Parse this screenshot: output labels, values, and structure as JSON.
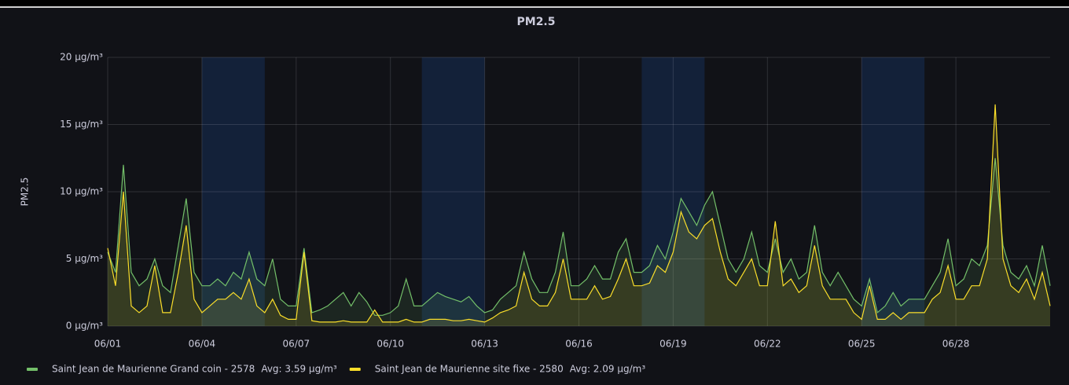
{
  "chart_data": {
    "type": "line",
    "title": "PM2.5",
    "y_label": "PM2.5",
    "xlim": [
      1,
      31
    ],
    "ylim": [
      0,
      20
    ],
    "xticks": [
      {
        "value": 1,
        "label": "06/01"
      },
      {
        "value": 4,
        "label": "06/04"
      },
      {
        "value": 7,
        "label": "06/07"
      },
      {
        "value": 10,
        "label": "06/10"
      },
      {
        "value": 13,
        "label": "06/13"
      },
      {
        "value": 16,
        "label": "06/16"
      },
      {
        "value": 19,
        "label": "06/19"
      },
      {
        "value": 22,
        "label": "06/22"
      },
      {
        "value": 25,
        "label": "06/25"
      },
      {
        "value": 28,
        "label": "06/28"
      }
    ],
    "yticks": [
      {
        "value": 0,
        "label": "0 µg/m³"
      },
      {
        "value": 5,
        "label": "5 µg/m³"
      },
      {
        "value": 10,
        "label": "10 µg/m³"
      },
      {
        "value": 15,
        "label": "15 µg/m³"
      },
      {
        "value": 20,
        "label": "20 µg/m³"
      }
    ],
    "grid": true,
    "shaded_regions": [
      [
        4,
        6
      ],
      [
        11,
        13
      ],
      [
        18,
        20
      ],
      [
        25,
        27
      ]
    ],
    "x": [
      1,
      1.25,
      1.5,
      1.75,
      2,
      2.25,
      2.5,
      2.75,
      3,
      3.25,
      3.5,
      3.75,
      4,
      4.25,
      4.5,
      4.75,
      5,
      5.25,
      5.5,
      5.75,
      6,
      6.25,
      6.5,
      6.75,
      7,
      7.25,
      7.5,
      7.75,
      8,
      8.25,
      8.5,
      8.75,
      9,
      9.25,
      9.5,
      9.75,
      10,
      10.25,
      10.5,
      10.75,
      11,
      11.25,
      11.5,
      11.75,
      12,
      12.25,
      12.5,
      12.75,
      13,
      13.25,
      13.5,
      13.75,
      14,
      14.25,
      14.5,
      14.75,
      15,
      15.25,
      15.5,
      15.75,
      16,
      16.25,
      16.5,
      16.75,
      17,
      17.25,
      17.5,
      17.75,
      18,
      18.25,
      18.5,
      18.75,
      19,
      19.25,
      19.5,
      19.75,
      20,
      20.25,
      20.5,
      20.75,
      21,
      21.25,
      21.5,
      21.75,
      22,
      22.25,
      22.5,
      22.75,
      23,
      23.25,
      23.5,
      23.75,
      24,
      24.25,
      24.5,
      24.75,
      25,
      25.25,
      25.5,
      25.75,
      26,
      26.25,
      26.5,
      26.75,
      27,
      27.25,
      27.5,
      27.75,
      28,
      28.25,
      28.5,
      28.75,
      29,
      29.25,
      29.5,
      29.75,
      30,
      30.25,
      30.5,
      30.75,
      31
    ],
    "series": [
      {
        "name": "Saint Jean de Maurienne Grand coin - 2578",
        "legend_avg": "Avg: 3.59 µg/m³",
        "color": "#73bf69",
        "values": [
          5.5,
          4,
          12,
          4,
          3,
          3.5,
          5,
          3,
          2.5,
          6,
          9.5,
          4,
          3,
          3,
          3.5,
          3,
          4,
          3.5,
          5.5,
          3.5,
          3,
          5,
          2,
          1.5,
          1.5,
          5.8,
          1,
          1.2,
          1.5,
          2,
          2.5,
          1.5,
          2.5,
          1.8,
          0.8,
          0.8,
          1,
          1.5,
          3.5,
          1.5,
          1.5,
          2,
          2.5,
          2.2,
          2,
          1.8,
          2.2,
          1.5,
          1,
          1.2,
          2,
          2.5,
          3,
          5.5,
          3.5,
          2.5,
          2.5,
          4,
          7,
          3,
          3,
          3.5,
          4.5,
          3.5,
          3.5,
          5.5,
          6.5,
          4,
          4,
          4.5,
          6,
          5,
          7,
          9.5,
          8.5,
          7.5,
          9,
          10,
          7.5,
          5,
          4,
          5,
          7,
          4.5,
          4,
          6.5,
          4,
          5,
          3.5,
          4,
          7.5,
          4,
          3,
          4,
          3,
          2,
          1.5,
          3.5,
          1,
          1.5,
          2.5,
          1.5,
          2,
          2,
          2,
          3,
          4,
          6.5,
          3,
          3.5,
          5,
          4.5,
          6,
          12.5,
          6,
          4,
          3.5,
          4.5,
          3,
          6,
          3
        ]
      },
      {
        "name": "Saint Jean de Maurienne site fixe - 2580",
        "legend_avg": "Avg: 2.09 µg/m³",
        "color": "#fade2a",
        "values": [
          5.8,
          3,
          10,
          1.5,
          1,
          1.5,
          4.5,
          1,
          1,
          4,
          7.5,
          2,
          1,
          1.5,
          2,
          2,
          2.5,
          2,
          3.5,
          1.5,
          1,
          2,
          0.8,
          0.5,
          0.5,
          5.5,
          0.4,
          0.3,
          0.3,
          0.3,
          0.4,
          0.3,
          0.3,
          0.3,
          1.2,
          0.3,
          0.3,
          0.3,
          0.5,
          0.3,
          0.3,
          0.5,
          0.5,
          0.5,
          0.4,
          0.4,
          0.5,
          0.4,
          0.3,
          0.6,
          1,
          1.2,
          1.5,
          4,
          2,
          1.5,
          1.5,
          2.5,
          5,
          2,
          2,
          2,
          3,
          2,
          2.2,
          3.5,
          5,
          3,
          3,
          3.2,
          4.5,
          4,
          5.5,
          8.5,
          7,
          6.5,
          7.5,
          8,
          5.5,
          3.5,
          3,
          4,
          5,
          3,
          3,
          7.8,
          3,
          3.5,
          2.5,
          3,
          6,
          3,
          2,
          2,
          2,
          1,
          0.5,
          3,
          0.5,
          0.5,
          1,
          0.5,
          1,
          1,
          1,
          2,
          2.5,
          4.5,
          2,
          2,
          3,
          3,
          5,
          16.5,
          5,
          3,
          2.5,
          3.5,
          2,
          4,
          1.5
        ]
      }
    ]
  }
}
